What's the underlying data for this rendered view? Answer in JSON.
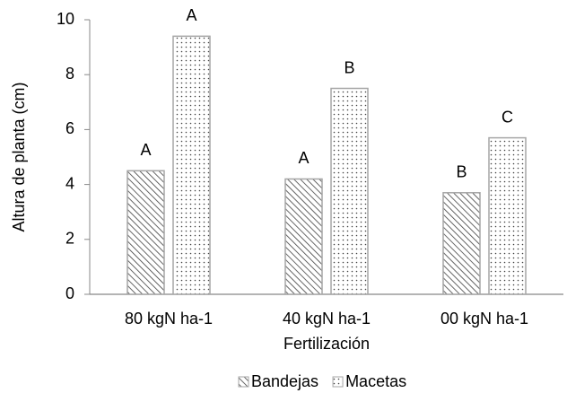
{
  "chart_data": {
    "type": "bar",
    "x_label": "Fertilización",
    "y_label": "Altura de planta (cm)",
    "categories": [
      "80 kgN ha-1",
      "40 kgN ha-1",
      "00 kgN ha-1"
    ],
    "series": [
      {
        "name": "Bandejas",
        "color": "#404040",
        "pattern": "hatch",
        "values": [
          4.5,
          4.2,
          3.7
        ],
        "labels": [
          "A",
          "A",
          "B"
        ]
      },
      {
        "name": "Macetas",
        "color": "#404040",
        "pattern": "dots",
        "values": [
          9.4,
          7.5,
          5.7
        ],
        "labels": [
          "A",
          "B",
          "C"
        ]
      }
    ],
    "ylim": [
      0,
      10
    ],
    "yticks": [
      0,
      2,
      4,
      6,
      8,
      10
    ],
    "grid": false,
    "legend": "bottom"
  }
}
